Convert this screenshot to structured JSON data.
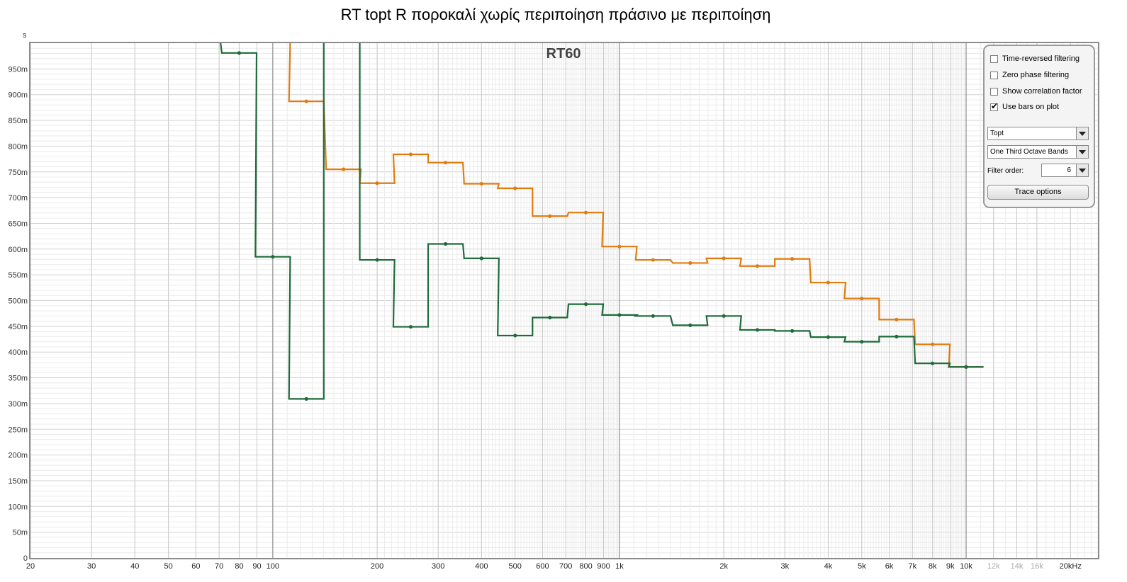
{
  "title": "RT topt R ποροκαλί χωρίς περιποίηση πράσινο με περιποίηση",
  "chart_data": {
    "type": "line",
    "subtitle": "RT60",
    "ylabel": "s",
    "xlabel": "",
    "xscale": "log",
    "xlim": [
      20,
      24000
    ],
    "ylim": [
      0,
      1.0
    ],
    "grid": true,
    "y_ticks": [
      {
        "v": 0,
        "label": "0"
      },
      {
        "v": 0.05,
        "label": "50m"
      },
      {
        "v": 0.1,
        "label": "100m"
      },
      {
        "v": 0.15,
        "label": "150m"
      },
      {
        "v": 0.2,
        "label": "200m"
      },
      {
        "v": 0.25,
        "label": "250m"
      },
      {
        "v": 0.3,
        "label": "300m"
      },
      {
        "v": 0.35,
        "label": "350m"
      },
      {
        "v": 0.4,
        "label": "400m"
      },
      {
        "v": 0.45,
        "label": "450m"
      },
      {
        "v": 0.5,
        "label": "500m"
      },
      {
        "v": 0.55,
        "label": "550m"
      },
      {
        "v": 0.6,
        "label": "600m"
      },
      {
        "v": 0.65,
        "label": "650m"
      },
      {
        "v": 0.7,
        "label": "700m"
      },
      {
        "v": 0.75,
        "label": "750m"
      },
      {
        "v": 0.8,
        "label": "800m"
      },
      {
        "v": 0.85,
        "label": "850m"
      },
      {
        "v": 0.9,
        "label": "900m"
      },
      {
        "v": 0.95,
        "label": "950m"
      }
    ],
    "x_ticks": [
      {
        "v": 20,
        "label": "20",
        "muted": false
      },
      {
        "v": 30,
        "label": "30",
        "muted": false
      },
      {
        "v": 40,
        "label": "40",
        "muted": false
      },
      {
        "v": 50,
        "label": "50",
        "muted": false
      },
      {
        "v": 60,
        "label": "60",
        "muted": false
      },
      {
        "v": 70,
        "label": "70",
        "muted": false
      },
      {
        "v": 80,
        "label": "80",
        "muted": false
      },
      {
        "v": 90,
        "label": "90",
        "muted": false
      },
      {
        "v": 100,
        "label": "100",
        "muted": false
      },
      {
        "v": 200,
        "label": "200",
        "muted": false
      },
      {
        "v": 300,
        "label": "300",
        "muted": false
      },
      {
        "v": 400,
        "label": "400",
        "muted": false
      },
      {
        "v": 500,
        "label": "500",
        "muted": false
      },
      {
        "v": 600,
        "label": "600",
        "muted": false
      },
      {
        "v": 700,
        "label": "700",
        "muted": false
      },
      {
        "v": 800,
        "label": "800",
        "muted": false
      },
      {
        "v": 900,
        "label": "900",
        "muted": false
      },
      {
        "v": 1000,
        "label": "1k",
        "muted": false
      },
      {
        "v": 2000,
        "label": "2k",
        "muted": false
      },
      {
        "v": 3000,
        "label": "3k",
        "muted": false
      },
      {
        "v": 4000,
        "label": "4k",
        "muted": false
      },
      {
        "v": 5000,
        "label": "5k",
        "muted": false
      },
      {
        "v": 6000,
        "label": "6k",
        "muted": false
      },
      {
        "v": 7000,
        "label": "7k",
        "muted": false
      },
      {
        "v": 8000,
        "label": "8k",
        "muted": false
      },
      {
        "v": 9000,
        "label": "9k",
        "muted": false
      },
      {
        "v": 10000,
        "label": "10k",
        "muted": false
      },
      {
        "v": 12000,
        "label": "12k",
        "muted": true
      },
      {
        "v": 14000,
        "label": "14k",
        "muted": true
      },
      {
        "v": 16000,
        "label": "16k",
        "muted": true
      },
      {
        "v": 20000,
        "label": "20kHz",
        "muted": false
      }
    ],
    "series": [
      {
        "color": "#e07b10",
        "points": [
          {
            "x": 125,
            "y": 0.887
          },
          {
            "x": 160,
            "y": 0.755
          },
          {
            "x": 200,
            "y": 0.728
          },
          {
            "x": 250,
            "y": 0.784
          },
          {
            "x": 315,
            "y": 0.768
          },
          {
            "x": 400,
            "y": 0.727
          },
          {
            "x": 500,
            "y": 0.718
          },
          {
            "x": 630,
            "y": 0.664
          },
          {
            "x": 800,
            "y": 0.671
          },
          {
            "x": 1000,
            "y": 0.605
          },
          {
            "x": 1250,
            "y": 0.579
          },
          {
            "x": 1600,
            "y": 0.573
          },
          {
            "x": 2000,
            "y": 0.582
          },
          {
            "x": 2500,
            "y": 0.567
          },
          {
            "x": 3150,
            "y": 0.581
          },
          {
            "x": 4000,
            "y": 0.535
          },
          {
            "x": 5000,
            "y": 0.504
          },
          {
            "x": 6300,
            "y": 0.463
          },
          {
            "x": 8000,
            "y": 0.415
          },
          {
            "x": 10000,
            "y": 0.371
          }
        ],
        "offscale_left": [
          100
        ]
      },
      {
        "color": "#1e6b3c",
        "points": [
          {
            "x": 80,
            "y": 0.981
          },
          {
            "x": 100,
            "y": 0.585
          },
          {
            "x": 125,
            "y": 0.309
          },
          {
            "x": 200,
            "y": 0.579
          },
          {
            "x": 250,
            "y": 0.449
          },
          {
            "x": 315,
            "y": 0.61
          },
          {
            "x": 400,
            "y": 0.582
          },
          {
            "x": 500,
            "y": 0.432
          },
          {
            "x": 630,
            "y": 0.467
          },
          {
            "x": 800,
            "y": 0.493
          },
          {
            "x": 1000,
            "y": 0.472
          },
          {
            "x": 1250,
            "y": 0.47
          },
          {
            "x": 1600,
            "y": 0.452
          },
          {
            "x": 2000,
            "y": 0.47
          },
          {
            "x": 2500,
            "y": 0.443
          },
          {
            "x": 3150,
            "y": 0.441
          },
          {
            "x": 4000,
            "y": 0.429
          },
          {
            "x": 5000,
            "y": 0.42
          },
          {
            "x": 6300,
            "y": 0.43
          },
          {
            "x": 8000,
            "y": 0.378
          },
          {
            "x": 10000,
            "y": 0.371
          }
        ],
        "offscale_left": [
          63
        ],
        "offscale_between": [
          160
        ]
      }
    ]
  },
  "panel": {
    "checkboxes": [
      {
        "label": "Time-reversed filtering",
        "checked": false
      },
      {
        "label": "Zero phase filtering",
        "checked": false
      },
      {
        "label": "Show correlation factor",
        "checked": false
      },
      {
        "label": "Use bars on plot",
        "checked": true
      }
    ],
    "select_type": "Topt",
    "select_bands": "One Third Octave Bands",
    "filter_order_label": "Filter order:",
    "filter_order_value": "6",
    "trace_button": "Trace options"
  }
}
